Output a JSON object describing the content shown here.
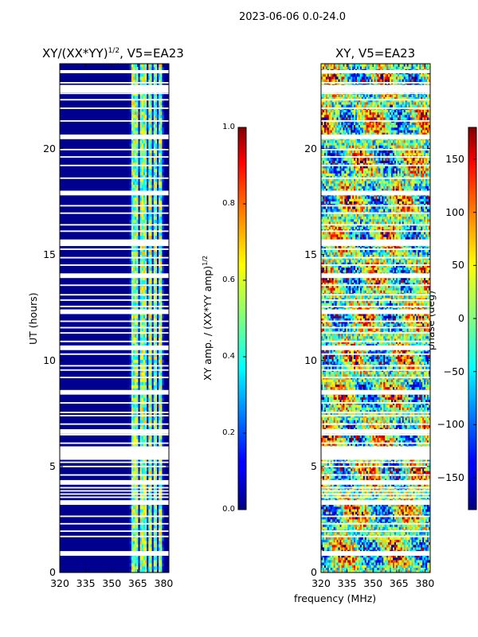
{
  "figure": {
    "suptitle": "2023-06-06 0.0-24.0",
    "xlabel": "frequency (MHz)"
  },
  "chart_data": [
    {
      "type": "heatmap",
      "title": "XY/(XX*YY)^1/2, V5=EA23",
      "title_main": "XY/(XX*YY)",
      "title_sup": "1/2",
      "title_rest": ", V5=EA23",
      "xlabel": "frequency (MHz)",
      "ylabel": "UT (hours)",
      "xlim": [
        320,
        383
      ],
      "ylim": [
        0,
        24
      ],
      "xticks": [
        320,
        335,
        350,
        365,
        380
      ],
      "xtick_labels": [
        "320",
        "335",
        "350",
        "365",
        "380"
      ],
      "yticks": [
        0,
        5,
        10,
        15,
        20
      ],
      "ytick_labels": [
        "0",
        "5",
        "10",
        "15",
        "20"
      ],
      "colormap": "jet",
      "colorbar": {
        "label_main": "XY amp. / (XX*YY amp)",
        "label_sup": "1/2",
        "range": [
          0.0,
          1.0
        ],
        "ticks": [
          0.0,
          0.2,
          0.4,
          0.6,
          0.8,
          1.0
        ],
        "tick_labels": [
          "0.0",
          "0.2",
          "0.4",
          "0.6",
          "0.8",
          "1.0"
        ]
      },
      "notes": "amplitude mostly ~0 below 359 MHz; elevated (0.3-0.7) in bands near 361-378 MHz"
    },
    {
      "type": "heatmap",
      "title": "XY, V5=EA23",
      "xlabel": "frequency (MHz)",
      "ylabel": "",
      "xlim": [
        320,
        383
      ],
      "ylim": [
        0,
        24
      ],
      "xticks": [
        320,
        335,
        350,
        365,
        380
      ],
      "xtick_labels": [
        "320",
        "335",
        "350",
        "365",
        "380"
      ],
      "yticks": [
        0,
        5,
        10,
        15,
        20
      ],
      "ytick_labels": [
        "0",
        "5",
        "10",
        "15",
        "20"
      ],
      "colormap": "jet",
      "colorbar": {
        "label": "phase (deg)",
        "range": [
          -180,
          180
        ],
        "ticks": [
          150,
          100,
          50,
          0,
          -50,
          -100,
          -150
        ],
        "tick_labels": [
          "150",
          "100",
          "50",
          "0",
          "−50",
          "−100",
          "−150"
        ]
      },
      "notes": "phase noise-like across full band, values spanning -180 to 180 deg"
    }
  ],
  "flagged_hours": [
    0.9,
    1.7,
    1.95,
    2.3,
    2.65,
    3.3,
    3.55,
    3.7,
    3.85,
    4.0,
    4.25,
    4.6,
    5.0,
    5.2,
    5.35,
    5.5,
    5.65,
    5.8,
    6.1,
    6.5,
    6.65,
    7.0,
    7.4,
    7.55,
    8.0,
    8.5,
    9.2,
    9.55,
    9.75,
    10.3,
    10.6,
    10.9,
    11.3,
    11.55,
    11.85,
    12.3,
    12.55,
    12.85,
    13.1,
    13.55,
    14.0,
    14.5,
    14.85,
    15.25,
    15.45,
    15.6,
    16.1,
    16.4,
    16.95,
    17.3,
    17.9,
    18.6,
    19.2,
    19.6,
    19.95,
    20.55,
    21.3,
    21.9,
    22.3,
    22.6,
    22.75,
    22.9,
    23.1,
    23.6
  ]
}
